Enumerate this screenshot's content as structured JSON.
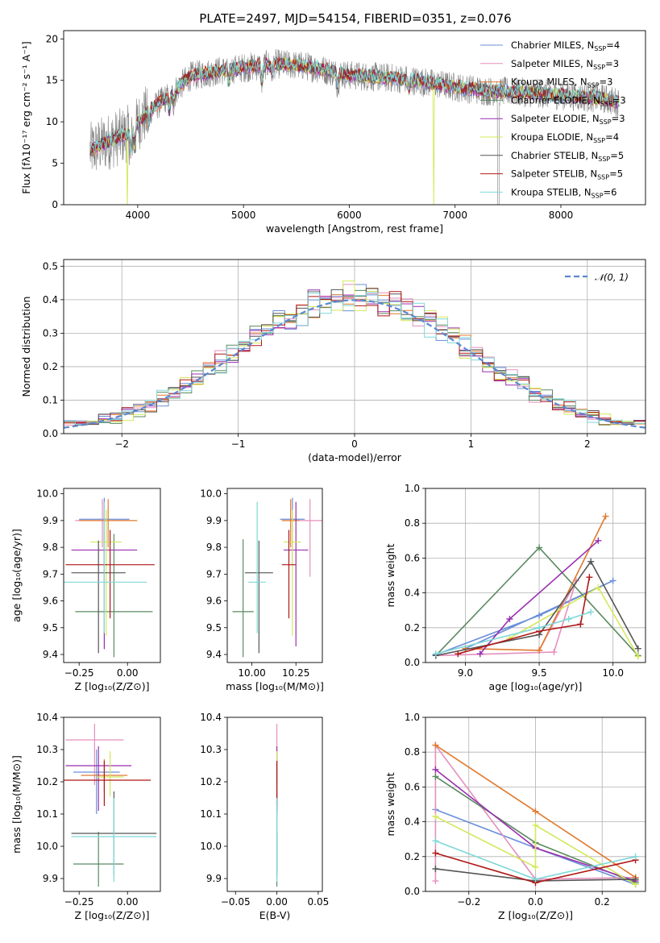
{
  "figure": {
    "title": "PLATE=2497, MJD=54154, FIBERID=0351, z=0.076"
  },
  "colors": [
    "#6a8fd8",
    "#e58fbd",
    "#e07a2e",
    "#5a8a60",
    "#9b2fb0",
    "#d4e85a",
    "#555555",
    "#b01818",
    "#7fd8d8"
  ],
  "chart_data": [
    {
      "id": "spectrum",
      "type": "line",
      "title": "PLATE=2497, MJD=54154, FIBERID=0351, z=0.076",
      "xlabel": "wavelength [Angstrom, rest frame]",
      "ylabel": "Flux [fλ10⁻¹⁷ erg cm⁻² s⁻¹ A⁻¹]",
      "xlim": [
        3300,
        8800
      ],
      "ylim": [
        0,
        21
      ],
      "xticks": [
        4000,
        5000,
        6000,
        7000,
        8000
      ],
      "yticks": [
        0,
        5,
        10,
        15,
        20
      ],
      "legend_placement": "upper-right",
      "continuum": {
        "x": [
          3550,
          3700,
          3900,
          4100,
          4300,
          4500,
          4800,
          5000,
          5300,
          5600,
          6000,
          6500,
          7000,
          7300,
          7600,
          8000,
          8400,
          8550
        ],
        "y": [
          6.5,
          7.5,
          8.5,
          11.2,
          13.2,
          15.5,
          16.2,
          16.5,
          17.0,
          16.7,
          15.6,
          15.2,
          14.2,
          13.7,
          13.6,
          13.2,
          12.8,
          12.3
        ]
      },
      "series": [
        {
          "name": "Chabrier MILES, N",
          "sub": "SSP",
          "suffix": "=4"
        },
        {
          "name": "Salpeter MILES, N",
          "sub": "SSP",
          "suffix": "=3"
        },
        {
          "name": "Kroupa MILES, N",
          "sub": "SSP",
          "suffix": "=3"
        },
        {
          "name": "Chabrier ELODIE, N",
          "sub": "SSP",
          "suffix": "=3"
        },
        {
          "name": "Salpeter ELODIE, N",
          "sub": "SSP",
          "suffix": "=3"
        },
        {
          "name": "Kroupa ELODIE, N",
          "sub": "SSP",
          "suffix": "=4"
        },
        {
          "name": "Chabrier STELIB, N",
          "sub": "SSP",
          "suffix": "=5"
        },
        {
          "name": "Salpeter STELIB, N",
          "sub": "SSP",
          "suffix": "=5"
        },
        {
          "name": "Kroupa STELIB, N",
          "sub": "SSP",
          "suffix": "=6"
        }
      ]
    },
    {
      "id": "residuals",
      "type": "histogram",
      "xlabel": "(data-model)/error",
      "ylabel": "Normed distribution",
      "xlim": [
        -2.5,
        2.5
      ],
      "ylim": [
        0,
        0.52
      ],
      "xticks": [
        -2,
        -1,
        0,
        1,
        2
      ],
      "yticks": [
        0.0,
        0.1,
        0.2,
        0.3,
        0.4,
        0.5
      ],
      "legend": "𝒩(0, 1)",
      "legend_placement": "upper-right",
      "gaussian": {
        "mean": 0,
        "sigma": 1
      },
      "bin_width": 0.1
    },
    {
      "id": "age-vs-z",
      "type": "errorbar",
      "xlabel": "Z [log₁₀(Z/Z⊙)]",
      "ylabel": "age  [log₁₀(age/yr)]",
      "xlim": [
        -0.33,
        0.17
      ],
      "ylim": [
        9.37,
        10.02
      ],
      "xticks": [
        -0.25,
        0.0
      ],
      "yticks": [
        9.4,
        9.5,
        9.6,
        9.7,
        9.8,
        9.9,
        10.0
      ],
      "points": [
        {
          "x": -0.12,
          "y": 9.905,
          "xerr": 0.13,
          "yerr": [
            0.17,
            0.08
          ]
        },
        {
          "x": -0.13,
          "y": 9.9,
          "xerr": 0.14,
          "yerr": [
            0.1,
            0.08
          ]
        },
        {
          "x": -0.1,
          "y": 9.9,
          "xerr": 0.15,
          "yerr": [
            0.1,
            0.08
          ]
        },
        {
          "x": -0.07,
          "y": 9.56,
          "xerr": 0.2,
          "yerr": [
            0.17,
            0.29
          ]
        },
        {
          "x": -0.12,
          "y": 9.79,
          "xerr": 0.17,
          "yerr": [
            0.37,
            0.18
          ]
        },
        {
          "x": -0.11,
          "y": 9.82,
          "xerr": 0.08,
          "yerr": [
            0.35,
            0.12
          ]
        },
        {
          "x": -0.15,
          "y": 9.705,
          "xerr": 0.14,
          "yerr": [
            0.3,
            0.12
          ]
        },
        {
          "x": -0.09,
          "y": 9.735,
          "xerr": 0.23,
          "yerr": [
            0.2,
            0.13
          ]
        },
        {
          "x": -0.12,
          "y": 9.67,
          "xerr": 0.22,
          "yerr": [
            0.19,
            0.3
          ]
        }
      ]
    },
    {
      "id": "age-vs-mass",
      "type": "errorbar",
      "xlabel": "mass [log₁₀(M/M⊙)]",
      "ylabel": "",
      "xlim": [
        9.86,
        10.4
      ],
      "ylim": [
        9.37,
        10.02
      ],
      "xticks": [
        10.0,
        10.25
      ],
      "yticks": [
        9.4,
        9.5,
        9.6,
        9.7,
        9.8,
        9.9,
        10.0
      ],
      "points": [
        {
          "x": 10.23,
          "y": 9.905,
          "xerr": 0.07,
          "yerr": [
            0.17,
            0.08
          ]
        },
        {
          "x": 10.33,
          "y": 9.9,
          "xerr": 0.08,
          "yerr": [
            0.21,
            0.08
          ]
        },
        {
          "x": 10.22,
          "y": 9.9,
          "xerr": 0.05,
          "yerr": [
            0.1,
            0.08
          ]
        },
        {
          "x": 9.95,
          "y": 9.56,
          "xerr": 0.06,
          "yerr": [
            0.17,
            0.27
          ]
        },
        {
          "x": 10.25,
          "y": 9.79,
          "xerr": 0.07,
          "yerr": [
            0.36,
            0.18
          ]
        },
        {
          "x": 10.23,
          "y": 9.82,
          "xerr": 0.05,
          "yerr": [
            0.35,
            0.12
          ]
        },
        {
          "x": 10.04,
          "y": 9.705,
          "xerr": 0.08,
          "yerr": [
            0.3,
            0.12
          ]
        },
        {
          "x": 10.21,
          "y": 9.735,
          "xerr": 0.04,
          "yerr": [
            0.2,
            0.13
          ]
        },
        {
          "x": 10.03,
          "y": 9.67,
          "xerr": 0.05,
          "yerr": [
            0.19,
            0.3
          ]
        }
      ]
    },
    {
      "id": "weight-vs-age",
      "type": "line",
      "xlabel": "age  [log₁₀(age/yr)]",
      "ylabel": "mass weight",
      "xlim": [
        8.73,
        10.22
      ],
      "ylim": [
        0,
        1.0
      ],
      "xticks": [
        9.0,
        9.5,
        10.0
      ],
      "yticks": [
        0.0,
        0.2,
        0.4,
        0.6,
        0.8,
        1.0
      ],
      "grid": true,
      "series": [
        {
          "x": [
            8.8,
            9.5,
            10.0,
            9.0
          ],
          "y": [
            0.045,
            0.27,
            0.47,
            0.08
          ]
        },
        {
          "x": [
            8.8,
            9.6,
            9.75,
            9.5
          ],
          "y": [
            0.04,
            0.06,
            0.47,
            0.07
          ]
        },
        {
          "x": [
            9.0,
            9.5,
            9.95
          ],
          "y": [
            0.08,
            0.07,
            0.84
          ]
        },
        {
          "x": [
            8.8,
            9.5,
            10.17
          ],
          "y": [
            0.04,
            0.66,
            0.04
          ]
        },
        {
          "x": [
            9.1,
            9.3,
            9.9
          ],
          "y": [
            0.05,
            0.25,
            0.7
          ]
        },
        {
          "x": [
            9.3,
            9.9,
            10.17
          ],
          "y": [
            0.14,
            0.43,
            0.035
          ]
        },
        {
          "x": [
            8.8,
            9.5,
            9.85,
            10.17
          ],
          "y": [
            0.04,
            0.16,
            0.58,
            0.08
          ]
        },
        {
          "x": [
            8.95,
            9.5,
            9.78,
            9.84
          ],
          "y": [
            0.05,
            0.18,
            0.22,
            0.49
          ]
        },
        {
          "x": [
            8.8,
            9.5,
            9.7,
            9.85
          ],
          "y": [
            0.05,
            0.2,
            0.25,
            0.29
          ]
        }
      ]
    },
    {
      "id": "mass-vs-z",
      "type": "errorbar",
      "xlabel": "Z [log₁₀(Z/Z⊙)]",
      "ylabel": "mass [log₁₀(M/M⊙)]",
      "xlim": [
        -0.33,
        0.17
      ],
      "ylim": [
        9.86,
        10.4
      ],
      "xticks": [
        -0.25,
        0.0
      ],
      "yticks": [
        9.9,
        10.0,
        10.1,
        10.2,
        10.3,
        10.4
      ],
      "points": [
        {
          "x": -0.16,
          "y": 10.23,
          "xerr": 0.12,
          "yerr": [
            0.13,
            0.07
          ]
        },
        {
          "x": -0.17,
          "y": 10.33,
          "xerr": 0.15,
          "yerr": [
            0.14,
            0.05
          ]
        },
        {
          "x": -0.12,
          "y": 10.22,
          "xerr": 0.12,
          "yerr": [
            0.05,
            0.05
          ]
        },
        {
          "x": -0.15,
          "y": 9.945,
          "xerr": 0.13,
          "yerr": [
            0.07,
            0.1
          ]
        },
        {
          "x": -0.15,
          "y": 10.25,
          "xerr": 0.17,
          "yerr": [
            0.14,
            0.06
          ]
        },
        {
          "x": -0.09,
          "y": 10.215,
          "xerr": 0.07,
          "yerr": [
            0.06,
            0.08
          ]
        },
        {
          "x": -0.07,
          "y": 10.04,
          "xerr": 0.22,
          "yerr": [
            0.13,
            0.13
          ]
        },
        {
          "x": -0.12,
          "y": 10.205,
          "xerr": 0.24,
          "yerr": [
            0.08,
            0.06
          ]
        },
        {
          "x": -0.07,
          "y": 10.03,
          "xerr": 0.22,
          "yerr": [
            0.14,
            0.12
          ]
        }
      ]
    },
    {
      "id": "mass-vs-ebv",
      "type": "errorbar",
      "xlabel": "E(B-V)",
      "ylabel": "",
      "xlim": [
        -0.06,
        0.055
      ],
      "ylim": [
        9.86,
        10.4
      ],
      "xticks": [
        -0.05,
        0.0,
        0.05
      ],
      "yticks": [
        9.9,
        10.0,
        10.1,
        10.2,
        10.3,
        10.4
      ],
      "points": [
        {
          "x": 0.0,
          "y": 10.23,
          "yerr": [
            0.13,
            0.07
          ]
        },
        {
          "x": 0.0,
          "y": 10.33,
          "yerr": [
            0.14,
            0.05
          ]
        },
        {
          "x": 0.0,
          "y": 10.22,
          "yerr": [
            0.05,
            0.05
          ]
        },
        {
          "x": 0.0,
          "y": 9.945,
          "yerr": [
            0.07,
            0.1
          ]
        },
        {
          "x": 0.0,
          "y": 10.25,
          "yerr": [
            0.14,
            0.06
          ]
        },
        {
          "x": 0.0,
          "y": 10.215,
          "yerr": [
            0.06,
            0.08
          ]
        },
        {
          "x": 0.0,
          "y": 10.04,
          "yerr": [
            0.13,
            0.13
          ]
        },
        {
          "x": 0.0,
          "y": 10.205,
          "yerr": [
            0.08,
            0.06
          ]
        },
        {
          "x": 0.0,
          "y": 10.03,
          "yerr": [
            0.14,
            0.12
          ]
        }
      ]
    },
    {
      "id": "weight-vs-z",
      "type": "line",
      "xlabel": "Z [log₁₀(Z/Z⊙)]",
      "ylabel": "mass weight",
      "xlim": [
        -0.33,
        0.33
      ],
      "ylim": [
        0,
        1.0
      ],
      "xticks": [
        -0.2,
        0.0,
        0.2
      ],
      "yticks": [
        0.0,
        0.2,
        0.4,
        0.6,
        0.8,
        1.0
      ],
      "grid": true,
      "series": [
        {
          "x": [
            -0.3,
            0.0,
            0.3
          ],
          "y": [
            0.47,
            0.25,
            0.04
          ]
        },
        {
          "x": [
            -0.3,
            -0.3,
            0.0,
            0.3
          ],
          "y": [
            0.06,
            0.84,
            0.07,
            0.08
          ]
        },
        {
          "x": [
            -0.3,
            0.0,
            0.3
          ],
          "y": [
            0.84,
            0.46,
            0.08
          ]
        },
        {
          "x": [
            -0.3,
            0.0,
            0.3
          ],
          "y": [
            0.66,
            0.28,
            0.05
          ]
        },
        {
          "x": [
            -0.3,
            0.0,
            0.3
          ],
          "y": [
            0.7,
            0.25,
            0.06
          ]
        },
        {
          "x": [
            -0.3,
            0.0,
            0.0,
            0.3
          ],
          "y": [
            0.43,
            0.14,
            0.38,
            0.04
          ]
        },
        {
          "x": [
            -0.3,
            0.0,
            0.3
          ],
          "y": [
            0.13,
            0.06,
            0.07
          ]
        },
        {
          "x": [
            -0.3,
            0.0,
            0.3
          ],
          "y": [
            0.22,
            0.05,
            0.18
          ]
        },
        {
          "x": [
            -0.3,
            0.0,
            0.3
          ],
          "y": [
            0.29,
            0.07,
            0.2
          ]
        }
      ]
    }
  ]
}
